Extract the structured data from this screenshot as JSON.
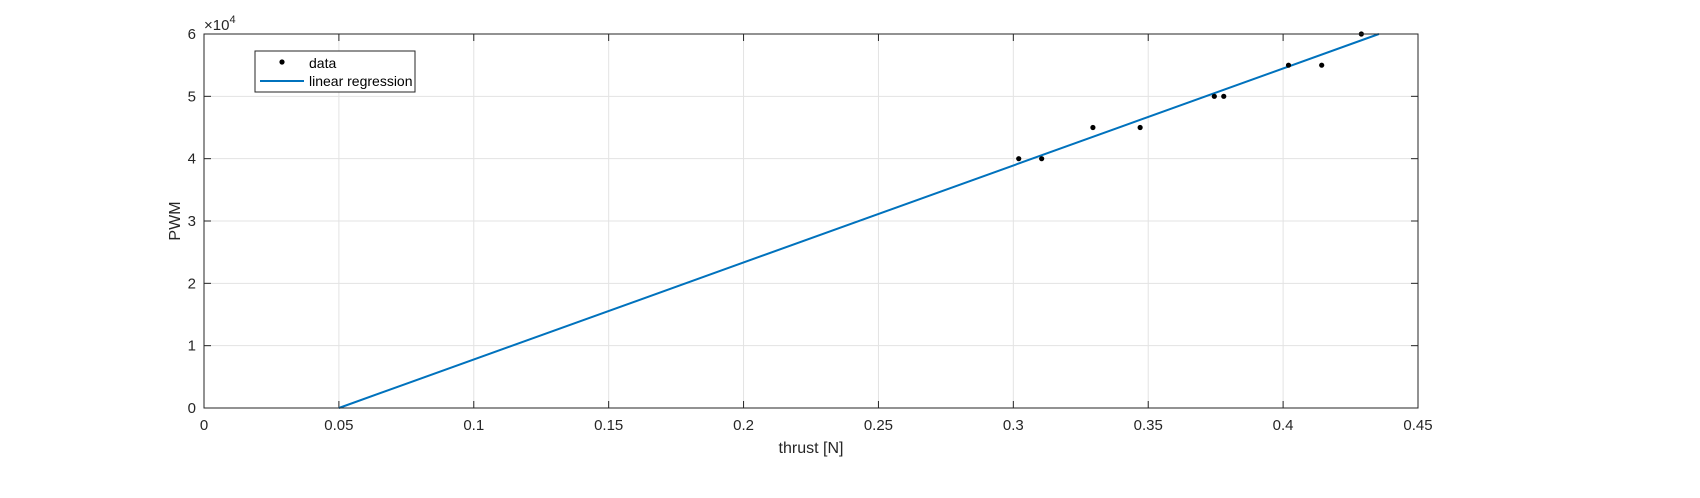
{
  "chart_data": {
    "type": "scatter",
    "xlabel": "thrust [N]",
    "ylabel": "PWM",
    "xlim": [
      0,
      0.45
    ],
    "ylim": [
      0,
      60000
    ],
    "x_ticks": [
      0,
      0.05,
      0.1,
      0.15,
      0.2,
      0.25,
      0.3,
      0.35,
      0.4,
      0.45
    ],
    "x_tick_labels": [
      "0",
      "0.05",
      "0.1",
      "0.15",
      "0.2",
      "0.25",
      "0.3",
      "0.35",
      "0.4",
      "0.45"
    ],
    "y_ticks": [
      0,
      10000,
      20000,
      30000,
      40000,
      50000,
      60000
    ],
    "y_tick_labels": [
      "0",
      "1",
      "2",
      "3",
      "4",
      "5",
      "6"
    ],
    "y_exponent": {
      "base": "×10",
      "power": "4"
    },
    "grid": true,
    "legend_position": "top-left",
    "series": [
      {
        "name": "data",
        "kind": "scatter",
        "color": "#000000",
        "x": [
          0.302,
          0.3105,
          0.3295,
          0.347,
          0.3745,
          0.378,
          0.402,
          0.4143,
          0.429
        ],
        "y": [
          40000,
          40000,
          45000,
          45000,
          50000,
          50000,
          55000,
          55000,
          60000
        ]
      },
      {
        "name": "linear regression",
        "kind": "line",
        "color": "#0072BD",
        "x": [
          0.05,
          0.4355
        ],
        "y": [
          0,
          60000
        ]
      }
    ]
  }
}
